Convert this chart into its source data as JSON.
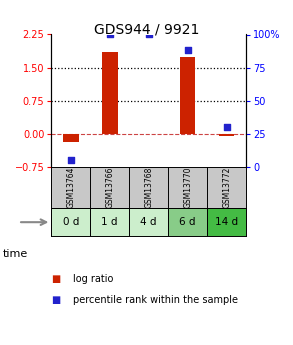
{
  "title": "GDS944 / 9921",
  "samples": [
    "GSM13764",
    "GSM13766",
    "GSM13768",
    "GSM13770",
    "GSM13772"
  ],
  "time_labels": [
    "0 d",
    "1 d",
    "4 d",
    "6 d",
    "14 d"
  ],
  "log_ratio": [
    -0.2,
    1.85,
    0.0,
    1.75,
    -0.05
  ],
  "percentile": [
    5,
    100,
    100,
    88,
    30
  ],
  "ylim_left": [
    -0.75,
    2.25
  ],
  "ylim_right": [
    0,
    100
  ],
  "yticks_left": [
    -0.75,
    0,
    0.75,
    1.5,
    2.25
  ],
  "yticks_right": [
    0,
    25,
    50,
    75,
    100
  ],
  "hlines": [
    0.75,
    1.5
  ],
  "bar_color": "#cc2200",
  "scatter_color": "#2222cc",
  "bg_color": "#ffffff",
  "sample_bg": "#c8c8c8",
  "time_bg_colors": [
    "#cceecc",
    "#cceecc",
    "#cceecc",
    "#88cc88",
    "#44bb44"
  ],
  "legend_bar_label": "log ratio",
  "legend_scatter_label": "percentile rank within the sample",
  "bar_width": 0.4
}
